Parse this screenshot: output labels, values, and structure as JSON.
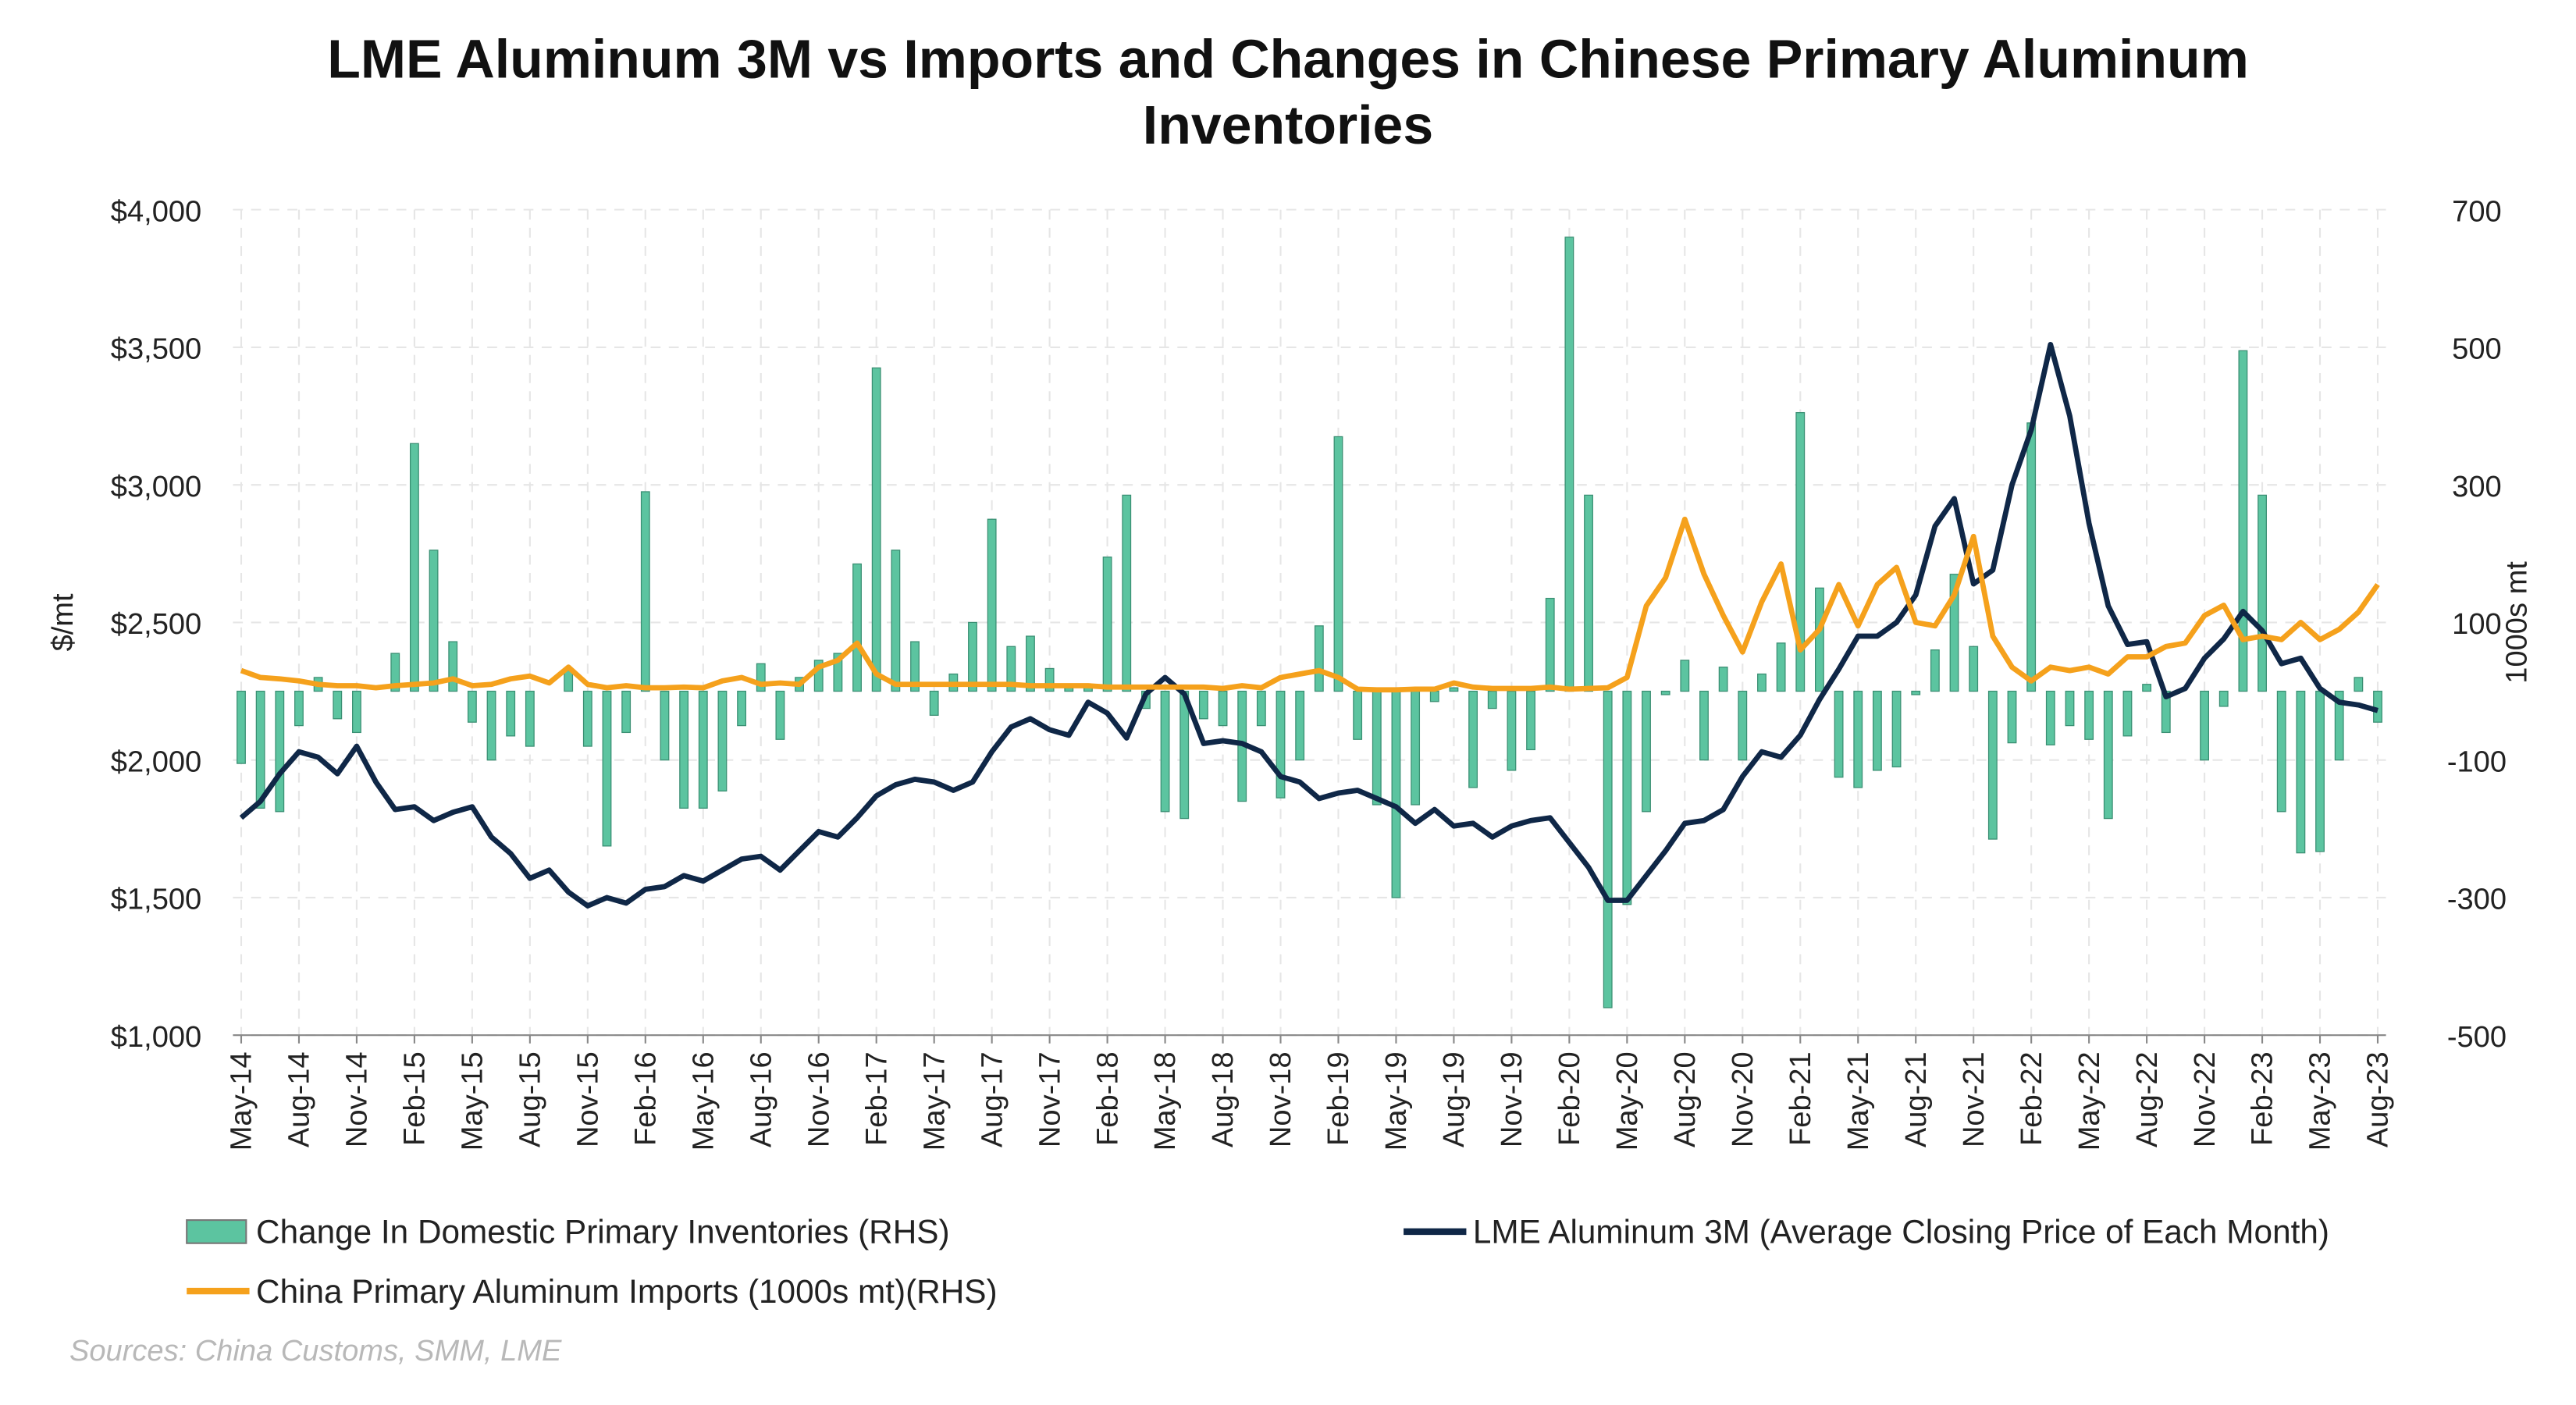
{
  "chart_data": {
    "type": "combo",
    "title": "LME Aluminum 3M vs Imports and Changes in Chinese Primary Aluminum Inventories",
    "y_label": "$/mt",
    "y2_label": "1000s mt",
    "source": "Sources: China Customs, SMM, LME",
    "grid": true,
    "categories": [
      "May-14",
      null,
      null,
      "Aug-14",
      null,
      null,
      "Nov-14",
      null,
      null,
      "Feb-15",
      null,
      null,
      "May-15",
      null,
      null,
      "Aug-15",
      null,
      null,
      "Nov-15",
      null,
      null,
      "Feb-16",
      null,
      null,
      "May-16",
      null,
      null,
      "Aug-16",
      null,
      null,
      "Nov-16",
      null,
      null,
      "Feb-17",
      null,
      null,
      "May-17",
      null,
      null,
      "Aug-17",
      null,
      null,
      "Nov-17",
      null,
      null,
      "Feb-18",
      null,
      null,
      "May-18",
      null,
      null,
      "Aug-18",
      null,
      null,
      "Nov-18",
      null,
      null,
      "Feb-19",
      null,
      null,
      "May-19",
      null,
      null,
      "Aug-19",
      null,
      null,
      "Nov-19",
      null,
      null,
      "Feb-20",
      null,
      null,
      "May-20",
      null,
      null,
      "Aug-20",
      null,
      null,
      "Nov-20",
      null,
      null,
      "Feb-21",
      null,
      null,
      "May-21",
      null,
      null,
      "Aug-21",
      null,
      null,
      "Nov-21",
      null,
      null,
      "Feb-22",
      null,
      null,
      "May-22",
      null,
      null,
      "Aug-22",
      null,
      null,
      "Nov-22",
      null,
      null,
      "Feb-23",
      null,
      null,
      "May-23",
      null,
      null,
      "Aug-23"
    ],
    "ylim": [
      1000,
      4000
    ],
    "yticks": [
      {
        "value": 1000,
        "label": "$1,000"
      },
      {
        "value": 1500,
        "label": "$1,500"
      },
      {
        "value": 2000,
        "label": "$2,000"
      },
      {
        "value": 2500,
        "label": "$2,500"
      },
      {
        "value": 3000,
        "label": "$3,000"
      },
      {
        "value": 3500,
        "label": "$3,500"
      },
      {
        "value": 4000,
        "label": "$4,000"
      }
    ],
    "y2lim": [
      -500,
      700
    ],
    "y2ticks": [
      -500,
      -300,
      -100,
      100,
      300,
      500,
      700
    ],
    "series": [
      {
        "name": "Change In Domestic Primary Inventories (RHS)",
        "type": "bar",
        "axis": "y2",
        "color": "#5cc4a0",
        "values": [
          -105,
          -170,
          -175,
          -50,
          20,
          -40,
          -60,
          0,
          55,
          360,
          205,
          72,
          -45,
          -100,
          -65,
          -80,
          0,
          30,
          -80,
          -225,
          -60,
          290,
          -100,
          -170,
          -170,
          -145,
          -50,
          40,
          -70,
          20,
          45,
          55,
          185,
          470,
          205,
          72,
          -35,
          25,
          100,
          250,
          65,
          80,
          33,
          5,
          8,
          195,
          285,
          -25,
          -175,
          -185,
          -40,
          -50,
          -160,
          -50,
          -155,
          -100,
          95,
          370,
          -70,
          -165,
          -300,
          -165,
          -15,
          5,
          -140,
          -25,
          -115,
          -85,
          135,
          660,
          285,
          -460,
          -310,
          -175,
          -5,
          45,
          -100,
          35,
          -100,
          25,
          70,
          405,
          150,
          -125,
          -140,
          -115,
          -110,
          -5,
          60,
          170,
          65,
          -215,
          -75,
          390,
          -78,
          -50,
          -70,
          -185,
          -65,
          10,
          -60,
          0,
          -100,
          -22,
          495,
          285,
          -175,
          -235,
          -233,
          -100,
          20,
          -45
        ]
      },
      {
        "name": "LME Aluminum 3M (Average Closing Price of Each Month)",
        "type": "line",
        "axis": "y",
        "color": "#0f2747",
        "values": [
          1790,
          1850,
          1950,
          2030,
          2010,
          1950,
          2050,
          1920,
          1820,
          1830,
          1780,
          1810,
          1830,
          1720,
          1660,
          1570,
          1600,
          1520,
          1470,
          1500,
          1480,
          1530,
          1540,
          1580,
          1560,
          1600,
          1640,
          1650,
          1600,
          1670,
          1740,
          1720,
          1790,
          1870,
          1910,
          1930,
          1920,
          1890,
          1920,
          2030,
          2120,
          2150,
          2110,
          2090,
          2210,
          2170,
          2080,
          2240,
          2300,
          2240,
          2060,
          2070,
          2060,
          2030,
          1940,
          1920,
          1860,
          1880,
          1890,
          1860,
          1830,
          1770,
          1820,
          1760,
          1770,
          1720,
          1760,
          1780,
          1790,
          1700,
          1610,
          1490,
          1490,
          1580,
          1670,
          1770,
          1780,
          1820,
          1940,
          2030,
          2010,
          2090,
          2220,
          2330,
          2450,
          2450,
          2500,
          2600,
          2850,
          2950,
          2640,
          2690,
          3000,
          3200,
          3510,
          3250,
          2860,
          2560,
          2420,
          2430,
          2230,
          2260,
          2370,
          2440,
          2540,
          2470,
          2350,
          2370,
          2260,
          2210,
          2200,
          2180
        ]
      },
      {
        "name": "China Primary Aluminum Imports (1000s mt)(RHS)",
        "type": "line",
        "axis": "y2",
        "color": "#f5a11c",
        "values": [
          30,
          20,
          18,
          15,
          10,
          8,
          8,
          5,
          8,
          10,
          12,
          18,
          8,
          10,
          18,
          22,
          12,
          35,
          10,
          5,
          8,
          5,
          5,
          6,
          5,
          15,
          20,
          10,
          12,
          10,
          35,
          45,
          70,
          25,
          10,
          10,
          10,
          10,
          10,
          10,
          10,
          8,
          8,
          8,
          8,
          6,
          6,
          6,
          6,
          6,
          6,
          4,
          8,
          5,
          20,
          25,
          30,
          20,
          3,
          2,
          2,
          3,
          3,
          12,
          6,
          4,
          4,
          4,
          6,
          3,
          4,
          5,
          20,
          124,
          165,
          250,
          170,
          110,
          57,
          130,
          185,
          60,
          90,
          155,
          95,
          155,
          180,
          100,
          95,
          140,
          225,
          80,
          35,
          15,
          35,
          30,
          35,
          25,
          50,
          50,
          65,
          70,
          110,
          125,
          75,
          80,
          75,
          100,
          75,
          90,
          115,
          155
        ]
      }
    ]
  }
}
